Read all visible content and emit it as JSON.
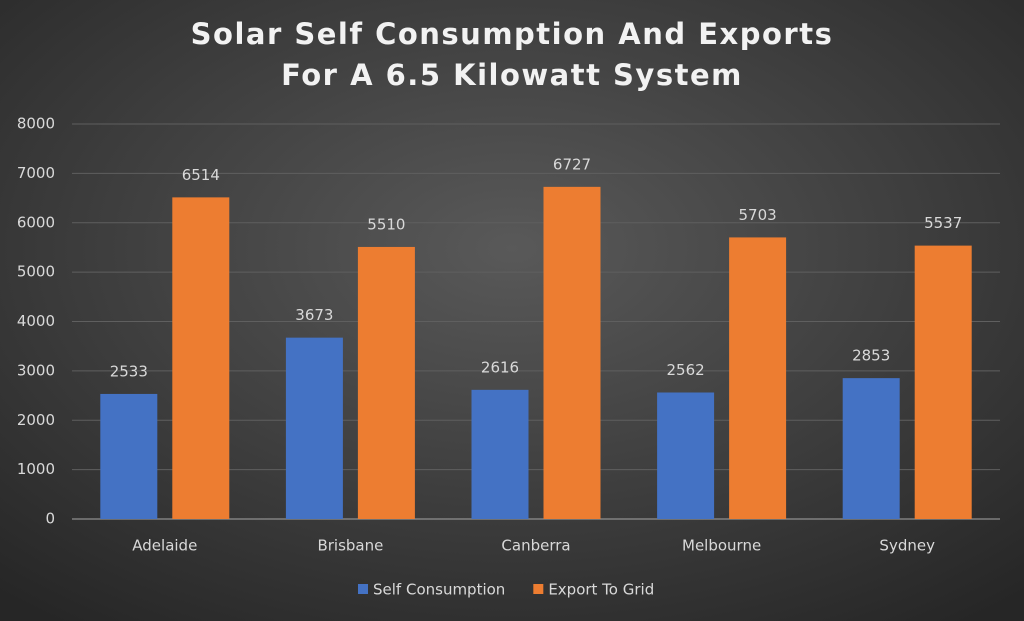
{
  "chart_data": {
    "type": "bar",
    "title": [
      "Solar Self Consumption And Exports",
      "For A 6.5 Kilowatt System"
    ],
    "categories": [
      "Adelaide",
      "Brisbane",
      "Canberra",
      "Melbourne",
      "Sydney"
    ],
    "series": [
      {
        "name": "Self Consumption",
        "color": "#4472c4",
        "values": [
          2533,
          3673,
          2616,
          2562,
          2853
        ]
      },
      {
        "name": "Export To Grid",
        "color": "#ed7d31",
        "values": [
          6514,
          5510,
          6727,
          5703,
          5537
        ]
      }
    ],
    "ylim": [
      0,
      8000
    ],
    "yticks": [
      0,
      1000,
      2000,
      3000,
      4000,
      5000,
      6000,
      7000,
      8000
    ],
    "grid": true,
    "legend": "bottom",
    "data_labels": true
  }
}
